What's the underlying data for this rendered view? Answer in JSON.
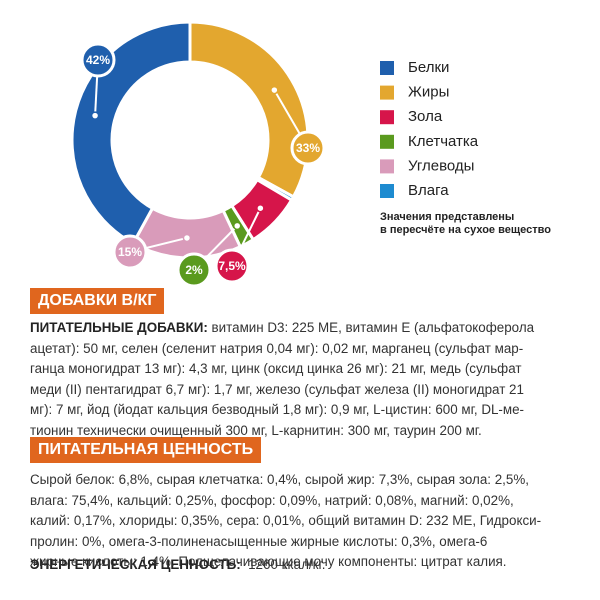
{
  "chart_data": {
    "type": "donut",
    "categories": [
      "Белки",
      "Жиры",
      "Зола",
      "Клетчатка",
      "Углеводы",
      "Влага"
    ],
    "values": [
      42,
      33,
      7.5,
      2,
      15,
      0.5
    ],
    "value_labels": [
      "42%",
      "33%",
      "7,5%",
      "2%",
      "15%",
      null
    ],
    "colors": [
      "#1f5fad",
      "#e3a72f",
      "#d6154a",
      "#5a9a1e",
      "#d99bba",
      "#1e8bd0"
    ],
    "note": [
      "Значения представлены",
      "в пересчёте на сухое вещество"
    ]
  },
  "additives": {
    "title": "ДОБАВКИ В/КГ",
    "lead": "ПИТАТЕЛЬНЫЕ ДОБАВКИ:",
    "lines": [
      " витамин D3: 225 МЕ, витамин Е (альфатокоферола",
      "ацетат): 50 мг, селен (селенит натрия 0,04 мг): 0,02 мг, марганец (сульфат мар-",
      "ганца моногидрат 13 мг): 4,3 мг, цинк (оксид цинка 26 мг): 21 мг, медь (сульфат",
      "меди (II) пентагидрат 6,7 мг): 1,7 мг, железо (сульфат железа (II) моногидрат 21",
      "мг): 7 мг, йод (йодат кальция безводный 1,8 мг): 0,9 мг, L-цистин: 600 мг, DL-ме-",
      "тионин технически очищенный 300 мг, L-карнитин: 300 мг, таурин 200 мг."
    ]
  },
  "nutrition": {
    "title": "ПИТАТЕЛЬНАЯ ЦЕННОСТЬ",
    "lines": [
      "Сырой белок: 6,8%, сырая клетчатка: 0,4%, сырой жир: 7,3%, сырая зола: 2,5%,",
      "влага: 75,4%, кальций: 0,25%, фосфор: 0,09%, натрий: 0,08%, магний: 0,02%,",
      "калий: 0,17%, хлориды: 0,35%, сера: 0,01%, общий витамин D: 232 МЕ, Гидрокси-",
      "пролин: 0%, омега-3-полиненасыщенные жирные кислоты: 0,3%, омега-6",
      "жирные кислоты: 1,4%. Подщелачивающие мочу компоненты: цитрат калия."
    ],
    "energy_label": "ЭНЕРГЕТИЧЕСКАЯ ЦЕННОСТЬ:",
    "energy_value": "1260 ккал/кг."
  }
}
